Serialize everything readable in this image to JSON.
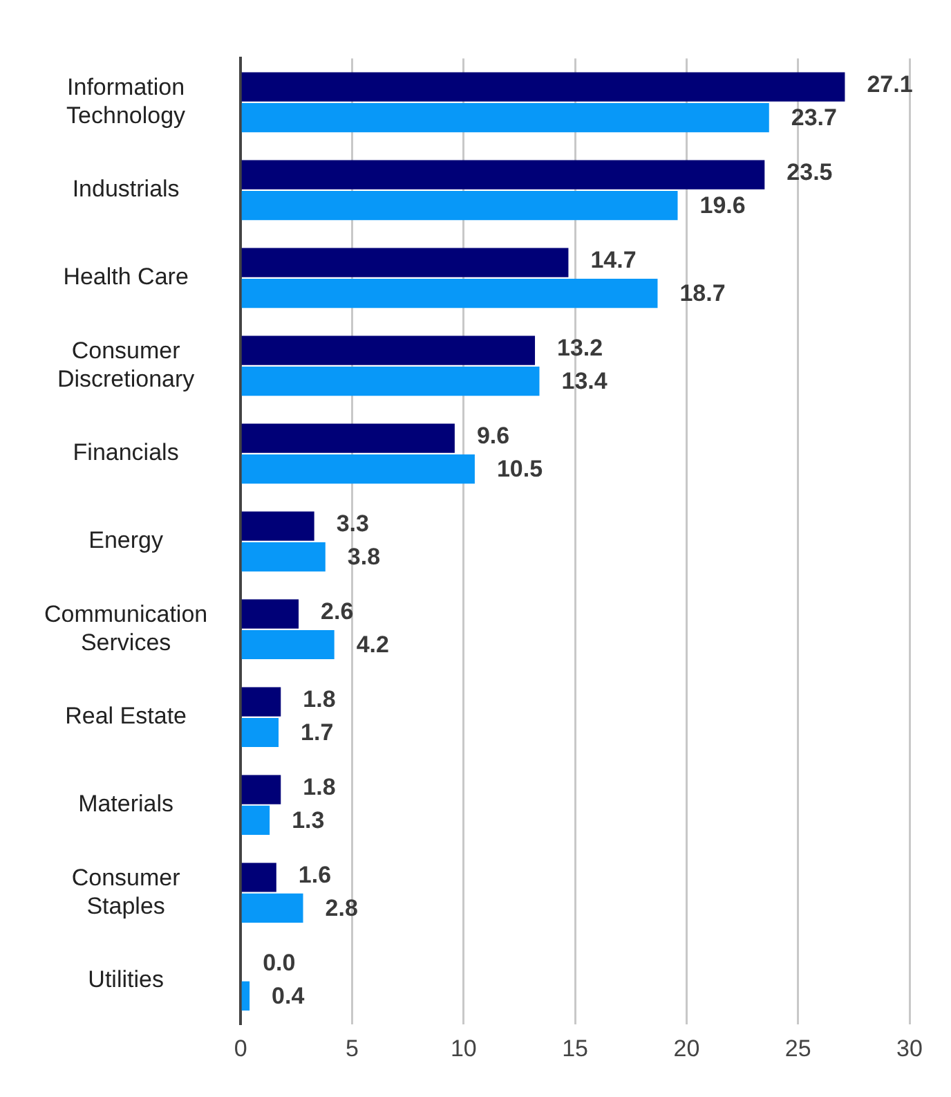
{
  "chart_data": {
    "type": "bar",
    "orientation": "horizontal",
    "categories": [
      "Information\nTechnology",
      "Industrials",
      "Health Care",
      "Consumer\nDiscretionary",
      "Financials",
      "Energy",
      "Communication\nServices",
      "Real Estate",
      "Materials",
      "Consumer\nStaples",
      "Utilities"
    ],
    "series": [
      {
        "color": "#000077",
        "values": [
          27.1,
          23.5,
          14.7,
          13.2,
          9.6,
          3.3,
          2.6,
          1.8,
          1.8,
          1.6,
          0.0
        ],
        "value_labels": [
          "27.1",
          "23.5",
          "14.7",
          "13.2",
          "9.6",
          "3.3",
          "2.6",
          "1.8",
          "1.8",
          "1.6",
          "0.0"
        ]
      },
      {
        "color": "#0898f8",
        "values": [
          23.7,
          19.6,
          18.7,
          13.4,
          10.5,
          3.8,
          4.2,
          1.7,
          1.3,
          2.8,
          0.4
        ],
        "value_labels": [
          "23.7",
          "19.6",
          "18.7",
          "13.4",
          "10.5",
          "3.8",
          "4.2",
          "1.7",
          "1.3",
          "2.8",
          "0.4"
        ]
      }
    ],
    "xlim": [
      0,
      30
    ],
    "xticks": [
      0,
      5,
      10,
      15,
      20,
      25,
      30
    ],
    "grid": "x",
    "legend": false
  }
}
